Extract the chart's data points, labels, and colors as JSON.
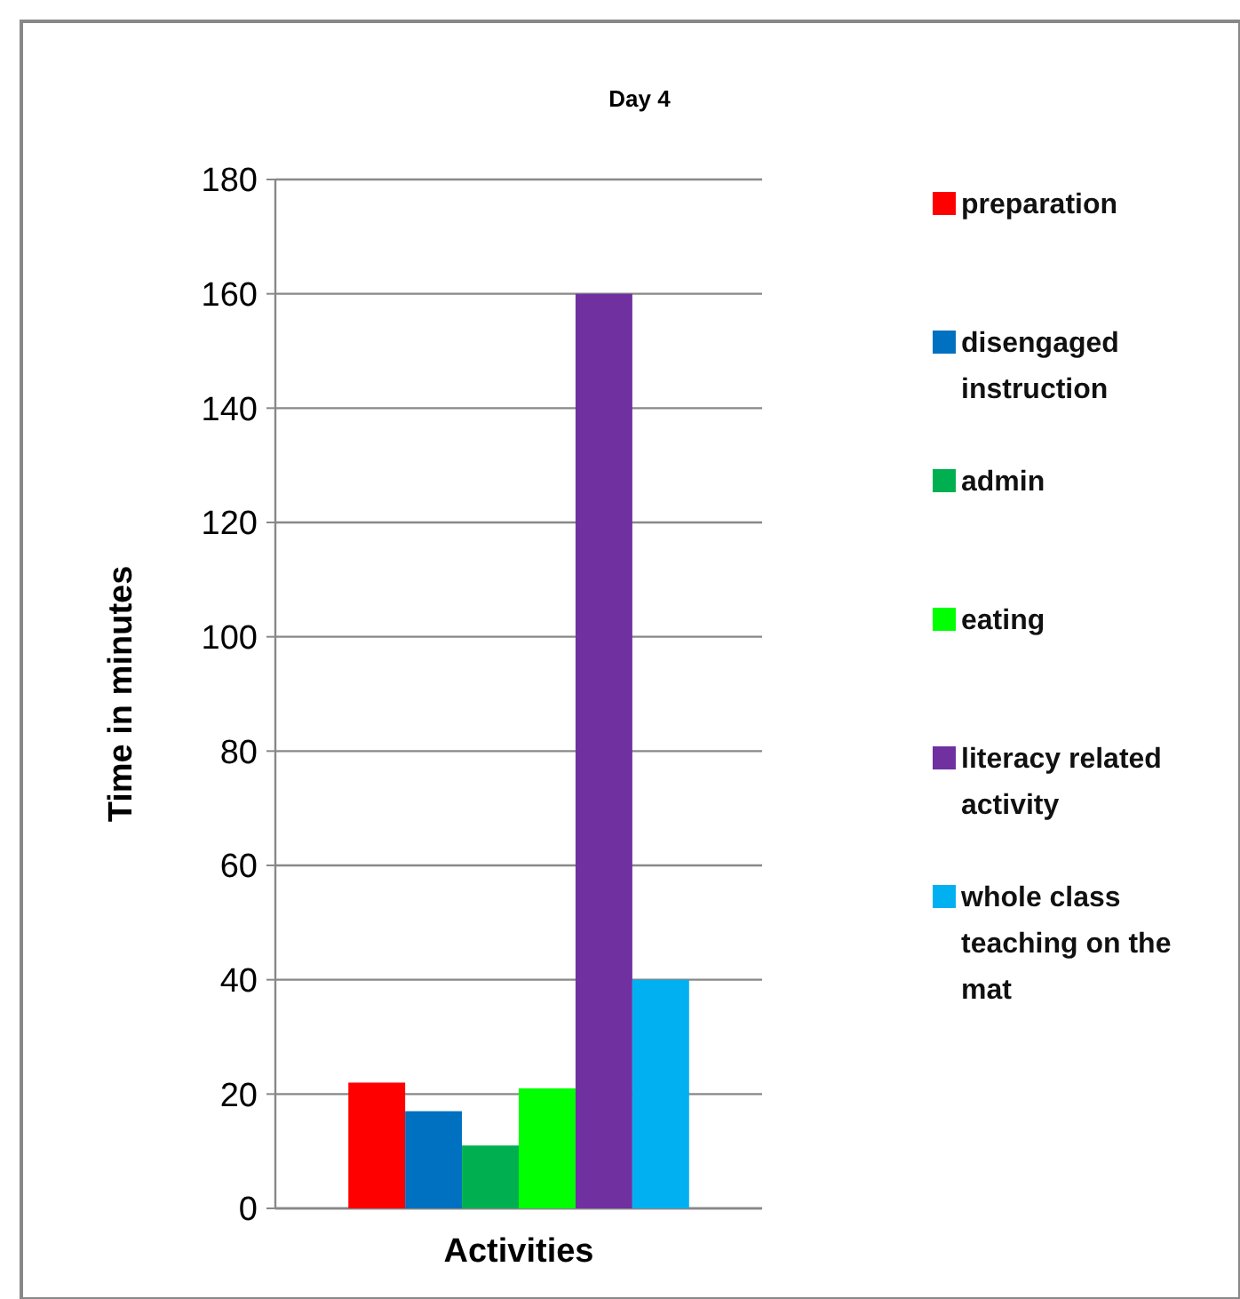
{
  "chart_data": {
    "type": "bar",
    "title": "Day 4",
    "xlabel": "Activities",
    "ylabel": "Time in minutes",
    "categories": [
      null
    ],
    "series": [
      {
        "name": "preparation",
        "color": "#ff0000",
        "values": [
          22
        ]
      },
      {
        "name": "disengaged instruction",
        "color": "#0070c0",
        "values": [
          17
        ]
      },
      {
        "name": "admin",
        "color": "#00b050",
        "values": [
          11
        ]
      },
      {
        "name": "eating",
        "color": "#00ff00",
        "values": [
          21
        ]
      },
      {
        "name": "literacy related activity",
        "color": "#7030a0",
        "values": [
          160
        ]
      },
      {
        "name": "whole class teaching on the mat",
        "color": "#00b0f0",
        "values": [
          40
        ]
      }
    ],
    "ylim": [
      0,
      180
    ],
    "yticks": [
      0,
      20,
      40,
      60,
      80,
      100,
      120,
      140,
      160,
      180
    ],
    "grid": "y",
    "legend": "right"
  }
}
